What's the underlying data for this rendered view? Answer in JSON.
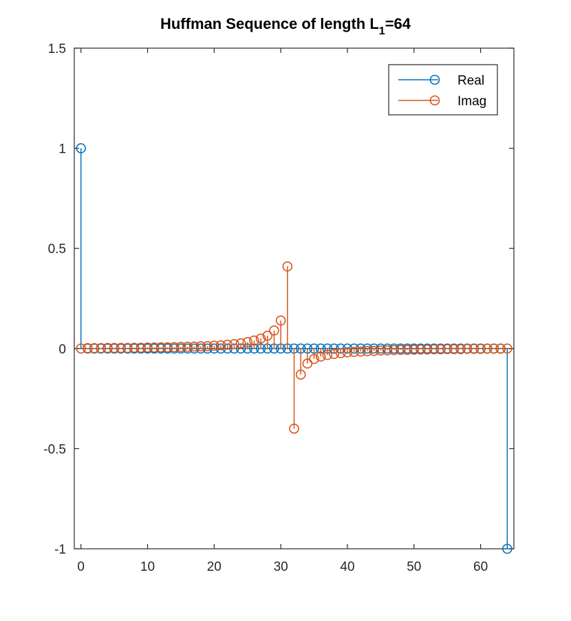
{
  "chart_data": {
    "type": "stem",
    "title": "Huffman Sequence of length  L",
    "title_subscript": "1",
    "title_suffix": "=64",
    "xlabel": "",
    "ylabel": "",
    "xlim": [
      -1,
      65
    ],
    "ylim": [
      -1,
      1.5
    ],
    "xticks": [
      0,
      10,
      20,
      30,
      40,
      50,
      60
    ],
    "xtick_labels": [
      "0",
      "10",
      "20",
      "30",
      "40",
      "50",
      "60"
    ],
    "yticks": [
      -1,
      -0.5,
      0,
      0.5,
      1,
      1.5
    ],
    "ytick_labels": [
      "-1",
      "-0.5",
      "0",
      "0.5",
      "1",
      "1.5"
    ],
    "grid": false,
    "legend_position": "top-right",
    "colors": {
      "real": "#0072BD",
      "imag": "#D95319",
      "axes": "#262626"
    },
    "series": [
      {
        "name": "Real",
        "x": [
          0,
          1,
          2,
          3,
          4,
          5,
          6,
          7,
          8,
          9,
          10,
          11,
          12,
          13,
          14,
          15,
          16,
          17,
          18,
          19,
          20,
          21,
          22,
          23,
          24,
          25,
          26,
          27,
          28,
          29,
          30,
          31,
          32,
          33,
          34,
          35,
          36,
          37,
          38,
          39,
          40,
          41,
          42,
          43,
          44,
          45,
          46,
          47,
          48,
          49,
          50,
          51,
          52,
          53,
          54,
          55,
          56,
          57,
          58,
          59,
          60,
          61,
          62,
          63,
          64
        ],
        "values": [
          1,
          0,
          0,
          0,
          0,
          0,
          0,
          0,
          0,
          0,
          0,
          0,
          0,
          0,
          0,
          0,
          0,
          0,
          0,
          0,
          0,
          0,
          0,
          0,
          0,
          0,
          0,
          0,
          0,
          0,
          0,
          0,
          0,
          0,
          0,
          0,
          0,
          0,
          0,
          0,
          0,
          0,
          0,
          0,
          0,
          0,
          0,
          0,
          0,
          0,
          0,
          0,
          0,
          0,
          0,
          0,
          0,
          0,
          0,
          0,
          0,
          0,
          0,
          0,
          -1
        ]
      },
      {
        "name": "Imag",
        "x": [
          0,
          1,
          2,
          3,
          4,
          5,
          6,
          7,
          8,
          9,
          10,
          11,
          12,
          13,
          14,
          15,
          16,
          17,
          18,
          19,
          20,
          21,
          22,
          23,
          24,
          25,
          26,
          27,
          28,
          29,
          30,
          31,
          32,
          33,
          34,
          35,
          36,
          37,
          38,
          39,
          40,
          41,
          42,
          43,
          44,
          45,
          46,
          47,
          48,
          49,
          50,
          51,
          52,
          53,
          54,
          55,
          56,
          57,
          58,
          59,
          60,
          61,
          62,
          63,
          64
        ],
        "values": [
          0,
          0.002,
          0.002,
          0.002,
          0.003,
          0.003,
          0.003,
          0.003,
          0.004,
          0.004,
          0.005,
          0.005,
          0.006,
          0.006,
          0.007,
          0.008,
          0.009,
          0.01,
          0.011,
          0.012,
          0.014,
          0.016,
          0.019,
          0.022,
          0.026,
          0.032,
          0.04,
          0.05,
          0.064,
          0.09,
          0.14,
          0.41,
          -0.4,
          -0.13,
          -0.075,
          -0.052,
          -0.04,
          -0.032,
          -0.027,
          -0.023,
          -0.019,
          -0.017,
          -0.015,
          -0.013,
          -0.012,
          -0.01,
          -0.009,
          -0.008,
          -0.007,
          -0.007,
          -0.006,
          -0.005,
          -0.005,
          -0.004,
          -0.004,
          -0.003,
          -0.003,
          -0.003,
          -0.002,
          -0.002,
          -0.002,
          -0.001,
          -0.001,
          -0.001,
          0
        ]
      }
    ]
  }
}
